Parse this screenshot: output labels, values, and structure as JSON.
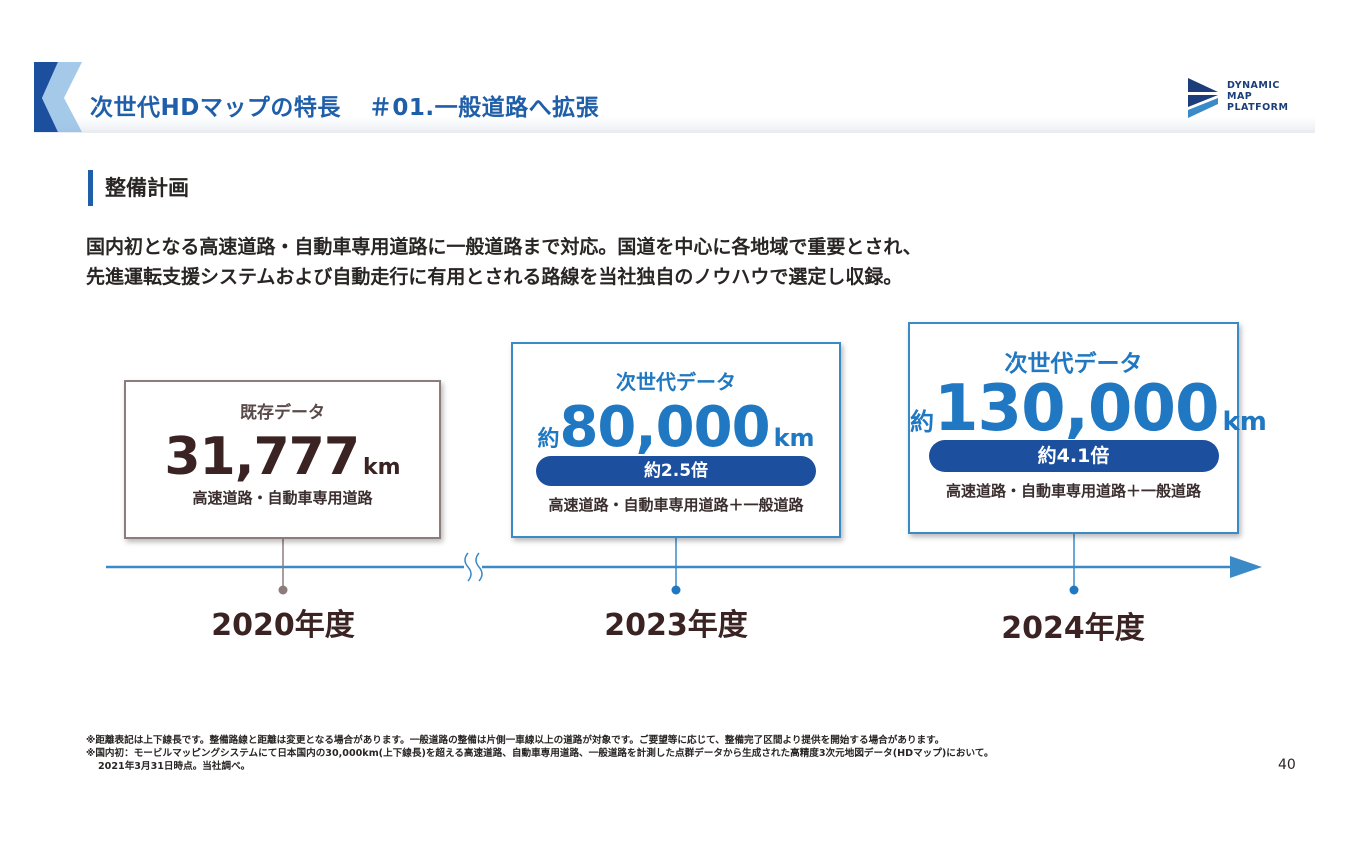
{
  "header": {
    "title_main": "次世代HDマップの特長",
    "title_sub": "＃01.一般道路へ拡張",
    "logo_lines": [
      "DYNAMIC",
      "MAP",
      "PLATFORM"
    ]
  },
  "section": {
    "heading": "整備計画",
    "lead_lines": [
      "国内初となる高速道路・自動車専用道路に一般道路まで対応。国道を中心に各地域で重要とされ、",
      "先進運転支援システムおよび自動走行に有用とされる路線を当社独自のノウハウで選定し収録。"
    ]
  },
  "boxes": {
    "y2020": {
      "label": "既存データ",
      "value": "31,777",
      "unit": "km",
      "sub": "高速道路・自動車専用道路"
    },
    "y2023": {
      "label": "次世代データ",
      "prefix": "約",
      "value": "80,000",
      "unit": "km",
      "ratio": "約2.5倍",
      "sub": "高速道路・自動車専用道路＋一般道路"
    },
    "y2024": {
      "label": "次世代データ",
      "prefix": "約",
      "value": "130,000",
      "unit": "km",
      "ratio": "約4.1倍",
      "sub": "高速道路・自動車専用道路＋一般道路"
    }
  },
  "timeline": {
    "years": [
      "2020年度",
      "2023年度",
      "2024年度"
    ]
  },
  "footnotes": [
    "※距離表記は上下線長です。整備路線と距離は変更となる場合があります。一般道路の整備は片側一車線以上の道路が対象です。ご要望等に応じて、整備完了区間より提供を開始する場合があります。",
    "※国内初：モービルマッピングシステムにて日本国内の30,000km(上下線長)を超える高速道路、自動車専用道路、一般道路を計測した点群データから生成された高精度3次元地図データ(HDマップ)において。",
    "2021年3月31日時点。当社調べ。"
  ],
  "page_number": "40",
  "colors": {
    "accent_blue": "#1f78c1",
    "title_blue": "#1f5ea8",
    "pill_navy": "#1c4f9e",
    "past_gray": "#8c7c7c"
  }
}
